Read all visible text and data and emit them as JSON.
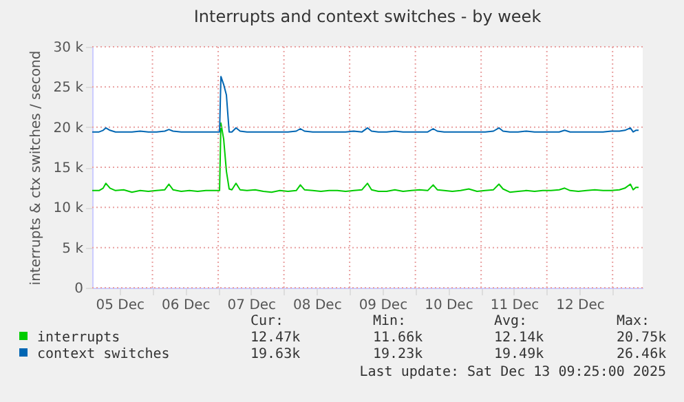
{
  "chart_data": {
    "type": "line",
    "title": "Interrupts and context switches - by week",
    "ylabel": "interrupts & ctx switches / second",
    "x": [
      "2025-12-05T02:00",
      "2025-12-05T04:30",
      "2025-12-05T06:00",
      "2025-12-05T07:00",
      "2025-12-05T08:30",
      "2025-12-05T10:30",
      "2025-12-05T13:30",
      "2025-12-05T16:30",
      "2025-12-05T19:30",
      "2025-12-05T22:30",
      "2025-12-06T01:30",
      "2025-12-06T04:30",
      "2025-12-06T06:00",
      "2025-12-06T07:30",
      "2025-12-06T10:30",
      "2025-12-06T13:30",
      "2025-12-06T16:30",
      "2025-12-06T19:30",
      "2025-12-06T22:30",
      "2025-12-07T00:30",
      "2025-12-07T01:00",
      "2025-12-07T02:00",
      "2025-12-07T03:00",
      "2025-12-07T04:00",
      "2025-12-07T05:00",
      "2025-12-07T06:30",
      "2025-12-07T08:00",
      "2025-12-07T10:30",
      "2025-12-07T13:30",
      "2025-12-07T16:30",
      "2025-12-07T19:30",
      "2025-12-07T22:30",
      "2025-12-08T01:30",
      "2025-12-08T04:30",
      "2025-12-08T06:00",
      "2025-12-08T07:30",
      "2025-12-08T10:30",
      "2025-12-08T13:30",
      "2025-12-08T16:30",
      "2025-12-08T19:30",
      "2025-12-08T22:30",
      "2025-12-09T01:30",
      "2025-12-09T04:30",
      "2025-12-09T06:30",
      "2025-12-09T08:00",
      "2025-12-09T10:30",
      "2025-12-09T13:30",
      "2025-12-09T16:30",
      "2025-12-09T19:30",
      "2025-12-09T22:30",
      "2025-12-10T01:30",
      "2025-12-10T04:30",
      "2025-12-10T06:30",
      "2025-12-10T08:00",
      "2025-12-10T10:30",
      "2025-12-10T13:30",
      "2025-12-10T16:30",
      "2025-12-10T19:30",
      "2025-12-10T22:30",
      "2025-12-11T01:30",
      "2025-12-11T04:30",
      "2025-12-11T06:30",
      "2025-12-11T08:00",
      "2025-12-11T10:30",
      "2025-12-11T13:30",
      "2025-12-11T16:30",
      "2025-12-11T19:30",
      "2025-12-11T22:30",
      "2025-12-12T01:30",
      "2025-12-12T04:30",
      "2025-12-12T06:30",
      "2025-12-12T08:30",
      "2025-12-12T11:30",
      "2025-12-12T14:30",
      "2025-12-12T17:30",
      "2025-12-12T20:30",
      "2025-12-12T23:30",
      "2025-12-13T02:30",
      "2025-12-13T04:30",
      "2025-12-13T06:30",
      "2025-12-13T07:30",
      "2025-12-13T08:30",
      "2025-12-13T09:30"
    ],
    "series": [
      {
        "name": "interrupts",
        "color": "#00cc00",
        "values": [
          12.1,
          12.1,
          12.4,
          13.0,
          12.4,
          12.1,
          12.2,
          11.9,
          12.1,
          12.0,
          12.1,
          12.2,
          12.9,
          12.2,
          12.0,
          12.1,
          12.0,
          12.1,
          12.1,
          12.1,
          20.5,
          18.5,
          14.5,
          12.3,
          12.2,
          13.0,
          12.2,
          12.1,
          12.2,
          12.0,
          11.9,
          12.1,
          12.0,
          12.1,
          12.8,
          12.2,
          12.1,
          12.0,
          12.1,
          12.1,
          12.0,
          12.1,
          12.2,
          13.0,
          12.2,
          12.0,
          12.0,
          12.2,
          12.0,
          12.1,
          12.2,
          12.1,
          12.8,
          12.2,
          12.1,
          12.0,
          12.1,
          12.3,
          12.0,
          12.1,
          12.2,
          12.9,
          12.3,
          11.9,
          12.0,
          12.1,
          12.0,
          12.1,
          12.1,
          12.2,
          12.4,
          12.1,
          12.0,
          12.1,
          12.2,
          12.1,
          12.1,
          12.2,
          12.4,
          12.9,
          12.2,
          12.5,
          12.5
        ]
      },
      {
        "name": "context switches",
        "color": "#0066b3",
        "values": [
          19.4,
          19.4,
          19.6,
          19.9,
          19.6,
          19.4,
          19.4,
          19.4,
          19.5,
          19.4,
          19.4,
          19.5,
          19.7,
          19.5,
          19.4,
          19.4,
          19.4,
          19.4,
          19.4,
          19.4,
          26.3,
          25.3,
          24.0,
          19.4,
          19.4,
          19.9,
          19.5,
          19.4,
          19.4,
          19.4,
          19.4,
          19.4,
          19.4,
          19.5,
          19.8,
          19.5,
          19.4,
          19.4,
          19.4,
          19.4,
          19.4,
          19.5,
          19.4,
          19.9,
          19.5,
          19.4,
          19.4,
          19.5,
          19.4,
          19.4,
          19.4,
          19.4,
          19.8,
          19.5,
          19.4,
          19.4,
          19.4,
          19.4,
          19.4,
          19.4,
          19.5,
          19.9,
          19.5,
          19.4,
          19.4,
          19.5,
          19.4,
          19.4,
          19.4,
          19.4,
          19.6,
          19.4,
          19.4,
          19.4,
          19.4,
          19.4,
          19.5,
          19.5,
          19.6,
          19.9,
          19.4,
          19.6,
          19.6
        ]
      }
    ],
    "xlim": [
      "2025-12-05T02:00",
      "2025-12-13T11:00"
    ],
    "xticks": [
      {
        "value": "2025-12-05T12:00",
        "label": "05 Dec"
      },
      {
        "value": "2025-12-06T12:00",
        "label": "06 Dec"
      },
      {
        "value": "2025-12-07T12:00",
        "label": "07 Dec"
      },
      {
        "value": "2025-12-08T12:00",
        "label": "08 Dec"
      },
      {
        "value": "2025-12-09T12:00",
        "label": "09 Dec"
      },
      {
        "value": "2025-12-10T12:00",
        "label": "10 Dec"
      },
      {
        "value": "2025-12-11T12:00",
        "label": "11 Dec"
      },
      {
        "value": "2025-12-12T12:00",
        "label": "12 Dec"
      },
      {
        "value": "2025-12-06T00:00",
        "label": null
      },
      {
        "value": "2025-12-07T00:00",
        "label": null
      },
      {
        "value": "2025-12-08T00:00",
        "label": null
      },
      {
        "value": "2025-12-09T00:00",
        "label": null
      },
      {
        "value": "2025-12-10T00:00",
        "label": null
      },
      {
        "value": "2025-12-11T00:00",
        "label": null
      },
      {
        "value": "2025-12-12T00:00",
        "label": null
      },
      {
        "value": "2025-12-13T00:00",
        "label": null
      }
    ],
    "ylim": [
      0,
      30
    ],
    "yticks": [
      0,
      {
        "value": 5,
        "label": "5 k"
      },
      {
        "value": 10,
        "label": "10 k"
      },
      {
        "value": 15,
        "label": "15 k"
      },
      {
        "value": 20,
        "label": "20 k"
      },
      {
        "value": 25,
        "label": "25 k"
      },
      {
        "value": 30,
        "label": "30 k"
      }
    ],
    "grid": true,
    "legend": "bottom",
    "annotations": [
      "Cur:",
      "Min:",
      "Avg:",
      "Max:",
      "12.47k",
      "11.66k",
      "12.14k",
      "20.75k",
      "19.63k",
      "19.23k",
      "19.49k",
      "26.46k",
      "Last update: Sat Dec 13 09:25:00 2025"
    ]
  }
}
